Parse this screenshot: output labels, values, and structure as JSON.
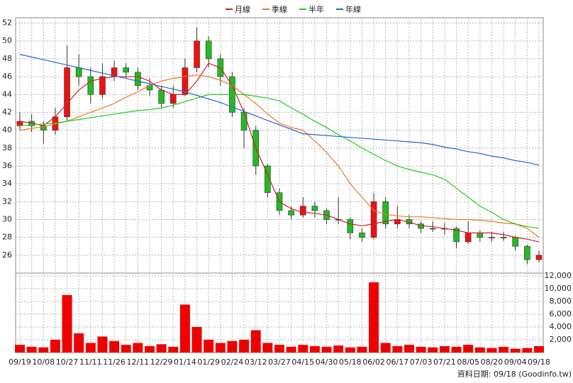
{
  "chart_data": [
    {
      "type": "candlestick",
      "categories": [
        "09/19",
        null,
        "10/08",
        null,
        "10/27",
        null,
        "11/11",
        null,
        "11/26",
        null,
        "12/11",
        null,
        "12/29",
        null,
        "01/14",
        null,
        "01/29",
        null,
        "02/24",
        null,
        "03/12",
        null,
        "03/27",
        null,
        "04/15",
        null,
        "04/30",
        null,
        "05/18",
        null,
        "06/02",
        null,
        "06/17",
        null,
        "07/03",
        null,
        "07/21",
        null,
        "08/05",
        null,
        "08/20",
        null,
        "09/04",
        null,
        "09/18"
      ],
      "open": [
        40.5,
        41,
        40.5,
        40,
        41.5,
        47,
        46,
        44,
        46,
        47,
        46.5,
        45,
        44.5,
        43,
        44,
        47,
        50,
        48,
        46,
        42,
        40,
        36,
        33,
        31,
        30.5,
        31.5,
        31,
        30,
        30,
        28.5,
        28,
        32,
        29.5,
        30,
        29.5,
        29,
        29,
        29,
        27.5,
        28.5,
        28,
        28,
        28,
        27,
        25.5
      ],
      "high": [
        42,
        41.8,
        41,
        42.5,
        49.5,
        48.5,
        47,
        47.5,
        47.8,
        47.5,
        47,
        45.8,
        45,
        45,
        48,
        51.5,
        50.5,
        48.5,
        46.5,
        42.5,
        40.5,
        36.2,
        33.5,
        31.5,
        32.5,
        32,
        31.2,
        32.5,
        30.2,
        29,
        33,
        32.5,
        31.5,
        30.5,
        29.8,
        29.8,
        29.6,
        29.2,
        29.8,
        28.8,
        28.6,
        28.6,
        28.2,
        27.2,
        26.5
      ],
      "low": [
        40,
        39.8,
        38.5,
        39.5,
        41,
        45,
        43,
        43.5,
        45.5,
        45.8,
        44.5,
        43.8,
        42.5,
        42.5,
        43.8,
        46.5,
        47,
        45,
        41.5,
        38,
        35,
        32.5,
        30.5,
        30,
        30.2,
        30.2,
        29.5,
        29.5,
        27.8,
        27.5,
        27.8,
        29,
        29,
        29,
        28.5,
        28.6,
        28.3,
        26.8,
        27.3,
        27.5,
        27.5,
        27.6,
        26.5,
        25,
        25.2
      ],
      "close": [
        41,
        40.5,
        40,
        41.5,
        47,
        46,
        44,
        46,
        47,
        46.5,
        45,
        44.5,
        43,
        44,
        47,
        50,
        48,
        46,
        42,
        40,
        36,
        33,
        31,
        30.5,
        31.5,
        31,
        30,
        30,
        28.5,
        28,
        32,
        29.5,
        30,
        29.5,
        29,
        29,
        29,
        27.5,
        28.5,
        28,
        28,
        28,
        27,
        25.5,
        26
      ],
      "up_color": "#ee1111",
      "down_color": "#22bb22",
      "series": [
        {
          "name": "月線",
          "color": "#cc2222",
          "values": [
            41,
            40.8,
            40.5,
            41.5,
            43,
            44.5,
            45.5,
            45.8,
            46,
            46,
            46,
            45.5,
            44.5,
            44,
            44,
            45.5,
            47.5,
            47,
            45,
            42,
            38,
            35,
            32,
            31.2,
            30.8,
            30.7,
            30.5,
            30,
            29.5,
            29.3,
            29.5,
            29.8,
            30,
            29.7,
            29.3,
            29.2,
            29,
            28.8,
            28.5,
            28.5,
            28.5,
            28.3,
            28,
            27.8,
            27.5
          ]
        },
        {
          "name": "季線",
          "color": "#ee7722",
          "values": [
            40,
            40.2,
            40.4,
            40.7,
            41,
            41.5,
            42,
            42.5,
            43,
            43.7,
            44.3,
            45,
            45.5,
            45.8,
            46,
            46.2,
            46,
            45.6,
            45,
            44,
            43,
            41.8,
            40.8,
            40.3,
            40,
            38.8,
            37.5,
            36,
            34,
            32.5,
            31,
            30.6,
            30.4,
            30.3,
            30.3,
            30.2,
            30.1,
            30,
            30,
            29.9,
            29.8,
            29.6,
            29.5,
            29,
            28
          ]
        },
        {
          "name": "半年",
          "color": "#22cc22",
          "values": [
            40.5,
            40.6,
            40.7,
            40.8,
            41,
            41.2,
            41.4,
            41.6,
            41.8,
            42,
            42.2,
            42.3,
            42.5,
            42.8,
            43.2,
            43.6,
            44,
            44,
            44,
            44,
            43.8,
            43.6,
            43.3,
            42.5,
            41.8,
            41,
            40.3,
            39.5,
            38.8,
            38,
            37.3,
            36.6,
            36,
            35.6,
            35.3,
            35,
            34.5,
            33.5,
            32.5,
            31.5,
            30.8,
            30,
            29.5,
            29.2,
            29
          ]
        },
        {
          "name": "年線",
          "color": "#2266cc",
          "values": [
            48.5,
            48.2,
            47.9,
            47.6,
            47.3,
            47,
            46.7,
            46.4,
            46.1,
            45.8,
            45.5,
            45.2,
            44.9,
            44.6,
            44.3,
            43.9,
            43.5,
            43.1,
            42.6,
            42.1,
            41.6,
            41.1,
            40.6,
            40.1,
            39.6,
            39.5,
            39.4,
            39.3,
            39.2,
            39.1,
            39,
            38.9,
            38.8,
            38.7,
            38.6,
            38.4,
            38.1,
            37.9,
            37.6,
            37.4,
            37.1,
            36.9,
            36.6,
            36.4,
            36.1
          ]
        }
      ],
      "ylim": [
        24,
        52.6
      ],
      "yticks": [
        26,
        28,
        30,
        32,
        34,
        36,
        38,
        40,
        42,
        44,
        46,
        48,
        50,
        52
      ],
      "grid": true
    },
    {
      "type": "bar",
      "color": "#ee0000",
      "values": [
        1200,
        900,
        800,
        2000,
        9000,
        3000,
        1500,
        2500,
        1800,
        1200,
        1500,
        1000,
        1300,
        900,
        7500,
        4000,
        2000,
        1500,
        1800,
        2000,
        3500,
        1500,
        1200,
        900,
        1200,
        1000,
        900,
        1100,
        800,
        900,
        11000,
        1500,
        1000,
        1200,
        900,
        800,
        1000,
        900,
        1200,
        800,
        700,
        900,
        600,
        700,
        1000
      ],
      "ylim": [
        0,
        12450
      ],
      "yticks": [
        {
          "value": 2000,
          "label": "2,000"
        },
        {
          "value": 4000,
          "label": "4,000"
        },
        {
          "value": 6000,
          "label": "6,000"
        },
        {
          "value": 8000,
          "label": "8,000"
        },
        {
          "value": 10000,
          "label": "10,000"
        },
        {
          "value": 12000,
          "label": "12,000"
        }
      ],
      "grid": true
    }
  ],
  "footer": "資料日期: 09/18 (Goodinfo.tw)"
}
